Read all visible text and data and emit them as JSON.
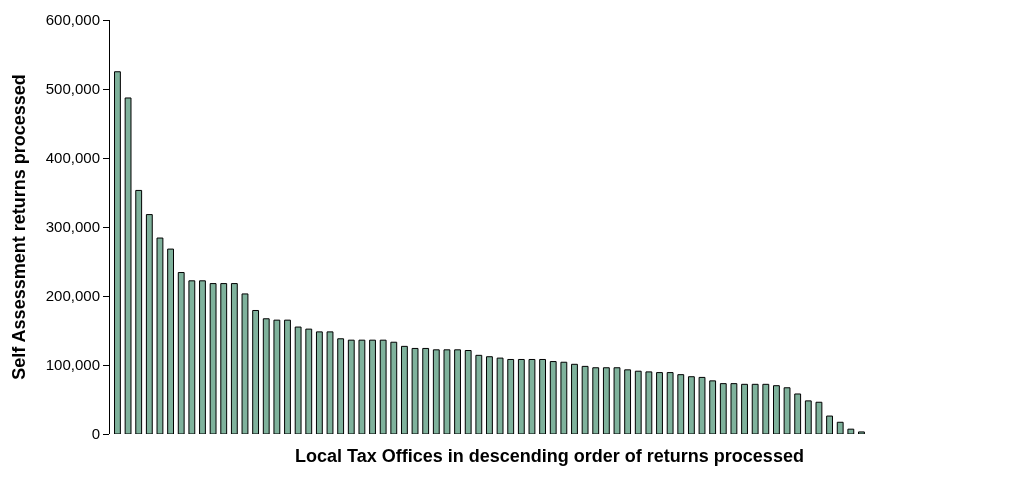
{
  "chart_data": {
    "type": "bar",
    "xlabel": "Local Tax Offices in descending order of returns processed",
    "ylabel": "Self Assessment returns processed",
    "categories": [
      null,
      null,
      null,
      null,
      null,
      null,
      null,
      null,
      null,
      null,
      null,
      null,
      null,
      null,
      null,
      null,
      null,
      null,
      null,
      null,
      null,
      null,
      null,
      null,
      null,
      null,
      null,
      null,
      null,
      null,
      null,
      null,
      null,
      null,
      null,
      null,
      null,
      null,
      null,
      null,
      null,
      null,
      null,
      null,
      null,
      null,
      null,
      null,
      null,
      null,
      null,
      null,
      null,
      null,
      null,
      null,
      null,
      null,
      null,
      null,
      null,
      null,
      null,
      null,
      null,
      null,
      null,
      null,
      null,
      null,
      null
    ],
    "values": [
      525000,
      487000,
      353000,
      318000,
      284000,
      268000,
      234000,
      222000,
      222000,
      218000,
      218000,
      218000,
      203000,
      179000,
      167000,
      165000,
      165000,
      155000,
      152000,
      148000,
      148000,
      138000,
      136000,
      136000,
      136000,
      136000,
      133000,
      127000,
      124000,
      124000,
      122000,
      122000,
      122000,
      121000,
      114000,
      112000,
      110000,
      108000,
      108000,
      108000,
      108000,
      105000,
      104000,
      101000,
      98000,
      96000,
      96000,
      96000,
      93000,
      91000,
      90000,
      89000,
      89000,
      86000,
      83000,
      82000,
      77000,
      73000,
      73000,
      72000,
      72000,
      72000,
      70000,
      67000,
      58000,
      48000,
      46000,
      26000,
      17000,
      7000,
      3000
    ],
    "color": "#7fb29c",
    "ylim": [
      0,
      600000
    ],
    "yticks": [
      {
        "value": 0,
        "label": "0"
      },
      {
        "value": 100000,
        "label": "100,000"
      },
      {
        "value": 200000,
        "label": "200,000"
      },
      {
        "value": 300000,
        "label": "300,000"
      },
      {
        "value": 400000,
        "label": "400,000"
      },
      {
        "value": 500000,
        "label": "500,000"
      },
      {
        "value": 600000,
        "label": "600,000"
      }
    ],
    "legend": false
  }
}
